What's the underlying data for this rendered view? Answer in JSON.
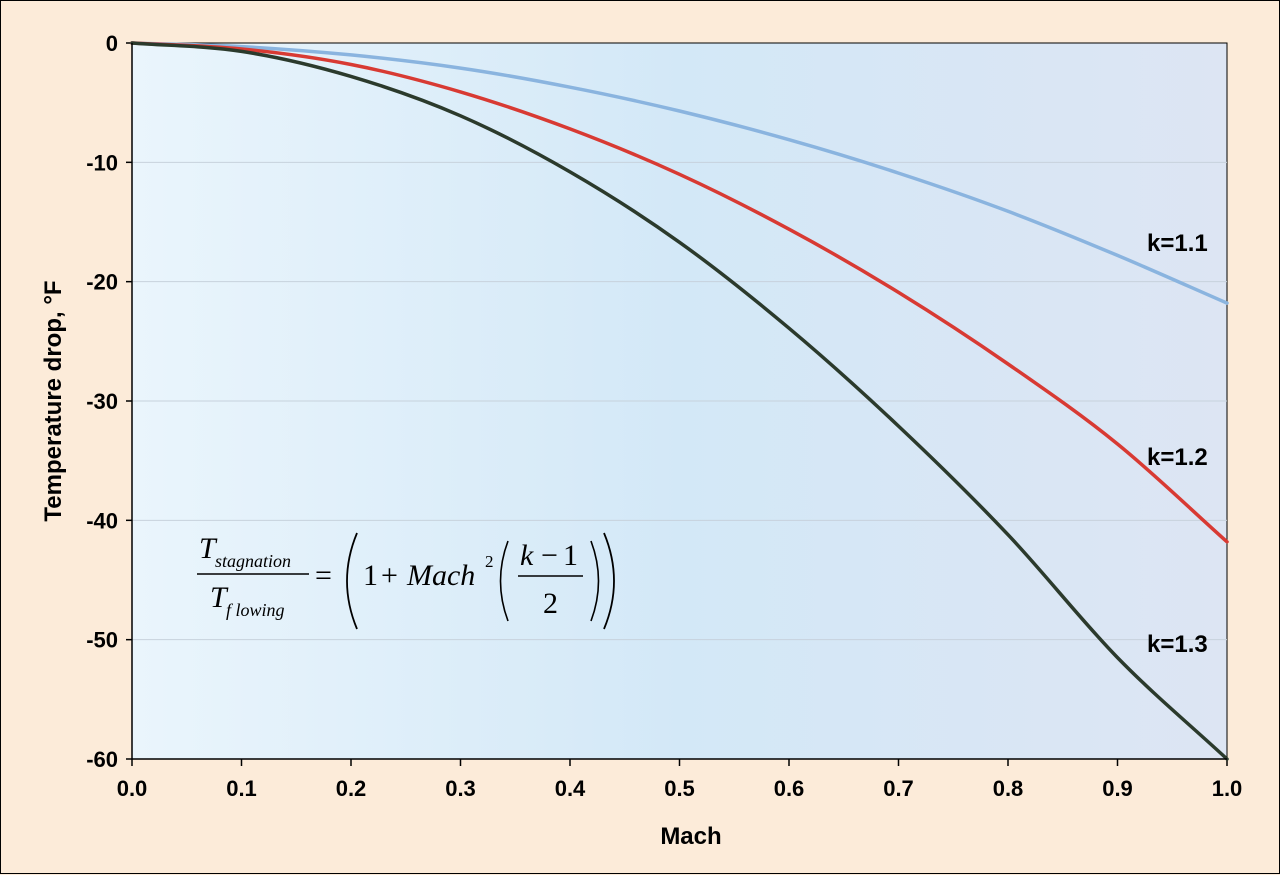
{
  "chart_data": {
    "type": "line",
    "xlabel": "Mach",
    "ylabel": "Temperature drop, °F",
    "xlim": [
      0,
      1.0
    ],
    "ylim": [
      -60,
      0
    ],
    "x_ticks": [
      "0.0",
      "0.1",
      "0.2",
      "0.3",
      "0.4",
      "0.5",
      "0.6",
      "0.7",
      "0.8",
      "0.9",
      "1.0"
    ],
    "y_ticks": [
      "0",
      "-10",
      "-20",
      "-30",
      "-40",
      "-50",
      "-60"
    ],
    "grid": true,
    "x": [
      0.0,
      0.1,
      0.2,
      0.3,
      0.4,
      0.5,
      0.6,
      0.7,
      0.8,
      0.9,
      1.0
    ],
    "series": [
      {
        "name": "k=1.1",
        "color": "#8ab4df",
        "values": [
          0,
          -0.3,
          -1.0,
          -2.1,
          -3.7,
          -5.7,
          -8.1,
          -10.9,
          -14.1,
          -17.8,
          -21.8
        ]
      },
      {
        "name": "k=1.2",
        "color": "#d83a33",
        "values": [
          0,
          -0.5,
          -1.8,
          -4.1,
          -7.2,
          -11.0,
          -15.6,
          -20.9,
          -26.9,
          -33.6,
          -41.8
        ]
      },
      {
        "name": "k=1.3",
        "color": "#2b3a2c",
        "values": [
          0,
          -0.7,
          -2.8,
          -6.1,
          -10.8,
          -16.7,
          -23.9,
          -32.1,
          -41.2,
          -51.5,
          -60.0
        ]
      }
    ],
    "formula": {
      "numerator_main": "T",
      "numerator_sub": "stagnation",
      "denominator_main": "T",
      "denominator_sub": "f lowing",
      "equals": "=",
      "one": "1",
      "plus": "+",
      "mach": "Mach",
      "exponent": "2",
      "k_minus_1": "k",
      "minus": "−",
      "one_b": "1",
      "two": "2"
    }
  }
}
